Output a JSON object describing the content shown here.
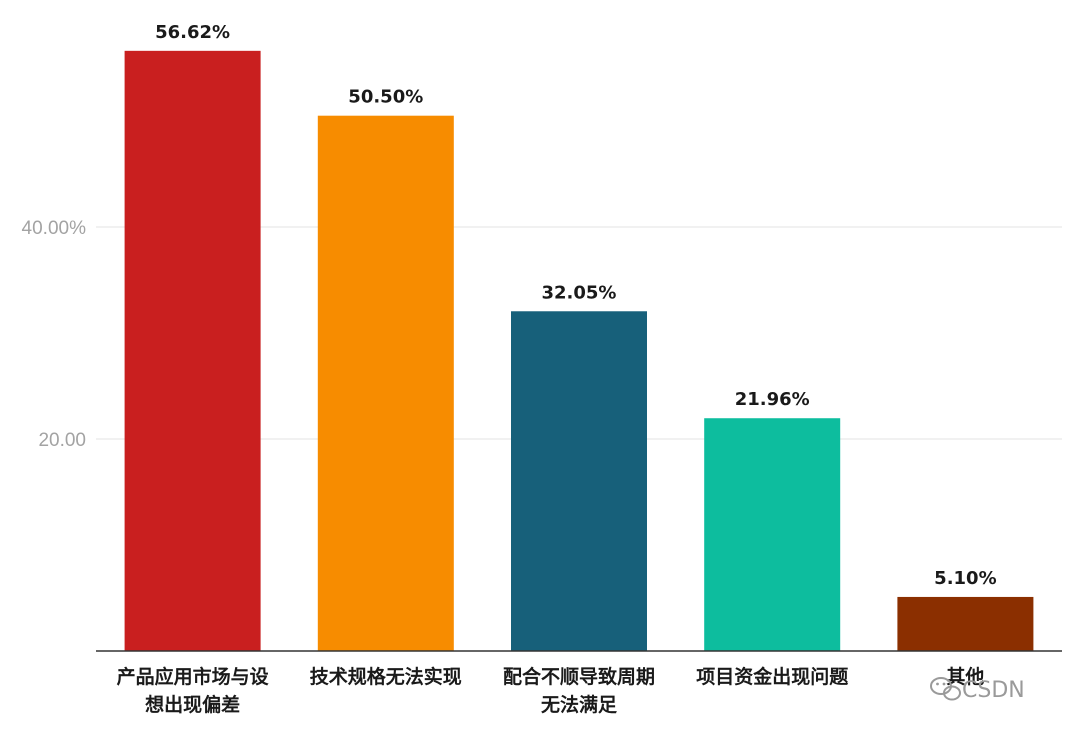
{
  "chart_data": {
    "type": "bar",
    "categories": [
      [
        "产品应用市场与设",
        "想出现偏差"
      ],
      [
        "技术规格无法实现"
      ],
      [
        "配合不顺导致周期",
        "无法满足"
      ],
      [
        "项目资金出现问题"
      ],
      [
        "其他"
      ]
    ],
    "values": [
      56.62,
      50.5,
      32.05,
      21.96,
      5.1
    ],
    "data_labels": [
      "56.62%",
      "50.50%",
      "32.05%",
      "21.96%",
      "5.10%"
    ],
    "colors": [
      "#c91f1f",
      "#f78c00",
      "#17607a",
      "#0dbd9e",
      "#8b2f00"
    ],
    "ylim": [
      0,
      60
    ],
    "y_ticks": [
      20,
      40
    ],
    "y_tick_labels": [
      "20.00",
      "40.00%"
    ],
    "grid": true,
    "title": "",
    "xlabel": "",
    "ylabel": ""
  },
  "watermark": {
    "icon": "wechat-icon",
    "text": "CSDN"
  }
}
